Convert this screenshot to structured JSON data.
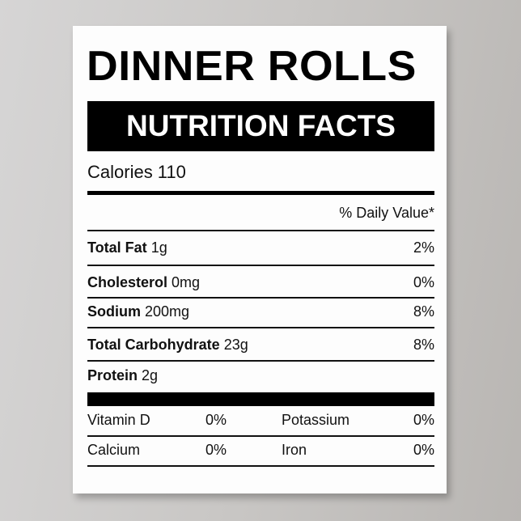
{
  "title": "DINNER ROLLS",
  "subtitle": "NUTRITION FACTS",
  "calories": "Calories 110",
  "daily_value_header": "% Daily Value*",
  "nutrients": [
    {
      "name": "Total Fat",
      "amount": "1g",
      "pct": "2%"
    },
    {
      "name": "Cholesterol",
      "amount": "0mg",
      "pct": "0%"
    },
    {
      "name": "Sodium",
      "amount": "200mg",
      "pct": "8%"
    },
    {
      "name": "Total Carbohydrate",
      "amount": "23g",
      "pct": "8%"
    },
    {
      "name": "Protein",
      "amount": "2g",
      "pct": ""
    }
  ],
  "vitamins": [
    [
      {
        "name": "Vitamin D",
        "pct": "0%"
      },
      {
        "name": "Potassium",
        "pct": "0%"
      }
    ],
    [
      {
        "name": "Calcium",
        "pct": "0%"
      },
      {
        "name": "Iron",
        "pct": "0%"
      }
    ]
  ]
}
